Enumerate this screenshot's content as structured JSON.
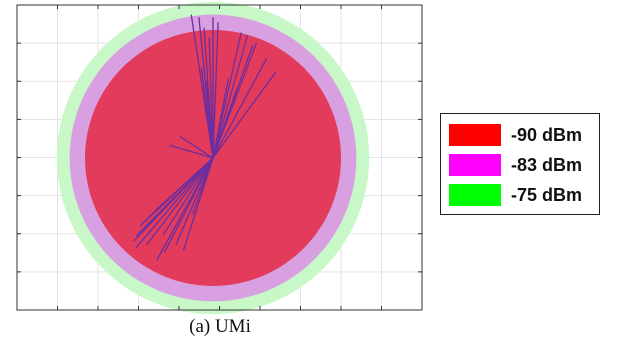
{
  "caption": "(a) UMi",
  "chart_data": {
    "type": "coverage-map",
    "title": "",
    "xlabel": "",
    "ylabel": "",
    "grid": true,
    "legend_position": "right",
    "site": {
      "x": 0,
      "y": 0
    },
    "regions": [
      {
        "label": "-75 dBm",
        "color": "#00ff00",
        "fill": "#c8f7c8",
        "radius": 1.22
      },
      {
        "label": "-83 dBm",
        "color": "#ff00ff",
        "fill": "#d8a0e0",
        "radius": 1.12
      },
      {
        "label": "-90 dBm",
        "color": "#ff0000",
        "fill": "#e23b5c",
        "radius": 1.0
      }
    ],
    "legend": [
      {
        "label": "-90 dBm",
        "color": "#ff0000"
      },
      {
        "label": "-83 dBm",
        "color": "#ff00ff"
      },
      {
        "label": "-75 dBm",
        "color": "#00ff00"
      }
    ],
    "rays_end": [
      [
        -0.17,
        1.12
      ],
      [
        -0.11,
        1.1
      ],
      [
        -0.07,
        1.02
      ],
      [
        -0.03,
        0.94
      ],
      [
        0.0,
        1.1
      ],
      [
        0.04,
        1.06
      ],
      [
        -0.09,
        0.7
      ],
      [
        -0.05,
        0.6
      ],
      [
        0.22,
        0.98
      ],
      [
        0.27,
        0.96
      ],
      [
        0.31,
        0.88
      ],
      [
        0.34,
        0.9
      ],
      [
        0.42,
        0.78
      ],
      [
        0.49,
        0.67
      ],
      [
        0.12,
        0.62
      ],
      [
        0.19,
        0.55
      ],
      [
        -0.26,
        0.17
      ],
      [
        -0.34,
        0.1
      ],
      [
        -0.46,
        -0.42
      ],
      [
        -0.52,
        -0.48
      ],
      [
        -0.57,
        -0.53
      ],
      [
        -0.6,
        -0.61
      ],
      [
        -0.62,
        -0.65
      ],
      [
        -0.6,
        -0.7
      ],
      [
        -0.52,
        -0.68
      ],
      [
        -0.44,
        -0.8
      ],
      [
        -0.38,
        -0.74
      ],
      [
        -0.29,
        -0.68
      ],
      [
        -0.23,
        -0.72
      ],
      [
        -0.16,
        -0.44
      ],
      [
        -0.39,
        -0.6
      ]
    ]
  }
}
